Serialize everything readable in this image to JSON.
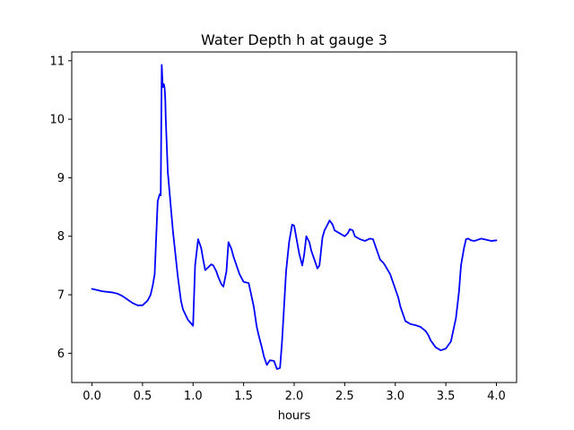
{
  "chart_data": {
    "type": "line",
    "title": "Water Depth h at gauge 3",
    "xlabel": "hours",
    "ylabel": "",
    "xlim": [
      -0.2,
      4.2
    ],
    "ylim": [
      5.5,
      11.15
    ],
    "xticks": [
      0.0,
      0.5,
      1.0,
      1.5,
      2.0,
      2.5,
      3.0,
      3.5,
      4.0
    ],
    "xtick_labels": [
      "0.0",
      "0.5",
      "1.0",
      "1.5",
      "2.0",
      "2.5",
      "3.0",
      "3.5",
      "4.0"
    ],
    "yticks": [
      6,
      7,
      8,
      9,
      10,
      11
    ],
    "ytick_labels": [
      "6",
      "7",
      "8",
      "9",
      "10",
      "11"
    ],
    "grid": false,
    "series": [
      {
        "color": "#0000ff",
        "x": [
          0.0,
          0.05,
          0.1,
          0.2,
          0.25,
          0.3,
          0.35,
          0.4,
          0.45,
          0.5,
          0.55,
          0.58,
          0.6,
          0.62,
          0.65,
          0.67,
          0.68,
          0.69,
          0.7,
          0.71,
          0.715,
          0.72,
          0.725,
          0.73,
          0.74,
          0.75,
          0.78,
          0.8,
          0.85,
          0.88,
          0.9,
          0.95,
          1.0,
          1.02,
          1.05,
          1.08,
          1.1,
          1.12,
          1.15,
          1.18,
          1.2,
          1.23,
          1.25,
          1.28,
          1.3,
          1.33,
          1.35,
          1.38,
          1.4,
          1.42,
          1.44,
          1.46,
          1.5,
          1.55,
          1.6,
          1.63,
          1.65,
          1.68,
          1.7,
          1.73,
          1.76,
          1.8,
          1.83,
          1.86,
          1.88,
          1.9,
          1.92,
          1.95,
          1.98,
          2.0,
          2.05,
          2.08,
          2.1,
          2.12,
          2.15,
          2.17,
          2.2,
          2.23,
          2.25,
          2.28,
          2.3,
          2.33,
          2.35,
          2.38,
          2.4,
          2.45,
          2.5,
          2.53,
          2.55,
          2.58,
          2.6,
          2.65,
          2.7,
          2.75,
          2.78,
          2.8,
          2.83,
          2.85,
          2.88,
          2.9,
          2.95,
          3.0,
          3.03,
          3.05,
          3.1,
          3.15,
          3.2,
          3.25,
          3.3,
          3.33,
          3.35,
          3.4,
          3.45,
          3.5,
          3.55,
          3.6,
          3.63,
          3.65,
          3.68,
          3.7,
          3.72,
          3.75,
          3.78,
          3.8,
          3.85,
          3.9,
          3.95,
          4.0
        ],
        "y": [
          7.1,
          7.08,
          7.06,
          7.04,
          7.02,
          6.98,
          6.92,
          6.86,
          6.82,
          6.82,
          6.9,
          7.0,
          7.15,
          7.35,
          8.6,
          8.72,
          8.7,
          10.93,
          10.55,
          10.6,
          10.58,
          10.5,
          10.35,
          10.0,
          9.55,
          9.1,
          8.5,
          8.1,
          7.3,
          6.9,
          6.75,
          6.57,
          6.47,
          7.5,
          7.95,
          7.8,
          7.6,
          7.42,
          7.47,
          7.52,
          7.5,
          7.4,
          7.3,
          7.18,
          7.14,
          7.4,
          7.9,
          7.78,
          7.65,
          7.55,
          7.45,
          7.35,
          7.22,
          7.2,
          6.8,
          6.45,
          6.3,
          6.1,
          5.95,
          5.8,
          5.88,
          5.87,
          5.73,
          5.75,
          6.2,
          6.8,
          7.4,
          7.9,
          8.2,
          8.18,
          7.7,
          7.5,
          7.7,
          8.0,
          7.9,
          7.75,
          7.6,
          7.45,
          7.5,
          7.98,
          8.1,
          8.2,
          8.27,
          8.2,
          8.1,
          8.05,
          8.0,
          8.05,
          8.12,
          8.1,
          8.0,
          7.95,
          7.92,
          7.96,
          7.95,
          7.85,
          7.7,
          7.6,
          7.55,
          7.5,
          7.35,
          7.1,
          6.95,
          6.8,
          6.55,
          6.5,
          6.48,
          6.45,
          6.38,
          6.3,
          6.22,
          6.1,
          6.05,
          6.08,
          6.2,
          6.6,
          7.05,
          7.5,
          7.8,
          7.95,
          7.96,
          7.93,
          7.92,
          7.93,
          7.96,
          7.94,
          7.92,
          7.93
        ]
      }
    ]
  }
}
